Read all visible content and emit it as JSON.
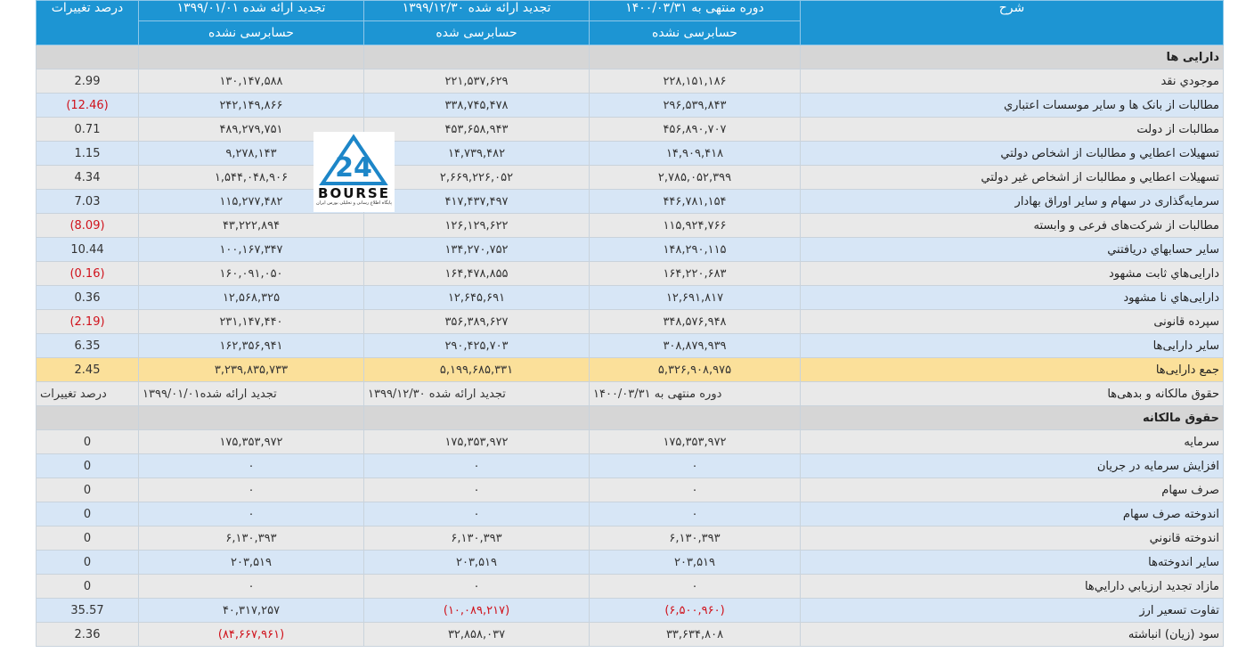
{
  "columns": {
    "label": "شرح",
    "c1": "دوره منتهی به ۱۴۰۰/۰۳/۳۱",
    "c2": "تجدید ارائه شده ۱۳۹۹/۱۲/۳۰",
    "c3": "تجدید ارائه شده ۱۳۹۹/۰۱/۰۱",
    "pct": "درصد تغییرات",
    "c1_sub": "حسابرسی نشده",
    "c2_sub": "حسابرسی شده",
    "c3_sub": "حسابرسی نشده"
  },
  "section_assets": "دارایی ها",
  "assets": [
    {
      "label": "موجودي نقد",
      "c1": "۲۲۸,۱۵۱,۱۸۶",
      "c2": "۲۲۱,۵۳۷,۶۲۹",
      "c3": "۱۳۰,۱۴۷,۵۸۸",
      "pct": "2.99"
    },
    {
      "label": "مطالبات از بانک ها و ساير موسسات اعتباري",
      "c1": "۲۹۶,۵۳۹,۸۴۳",
      "c2": "۳۳۸,۷۴۵,۴۷۸",
      "c3": "۲۴۲,۱۴۹,۸۶۶",
      "pct": "(12.46)"
    },
    {
      "label": "مطالبات از دولت",
      "c1": "۴۵۶,۸۹۰,۷۰۷",
      "c2": "۴۵۳,۶۵۸,۹۴۳",
      "c3": "۴۸۹,۲۷۹,۷۵۱",
      "pct": "0.71"
    },
    {
      "label": "تسهيلات اعطايي و مطالبات از اشخاص دولتي",
      "c1": "۱۴,۹۰۹,۴۱۸",
      "c2": "۱۴,۷۳۹,۴۸۲",
      "c3": "۹,۲۷۸,۱۴۳",
      "pct": "1.15"
    },
    {
      "label": "تسهيلات اعطايي و مطالبات از اشخاص غير دولتي",
      "c1": "۲,۷۸۵,۰۵۲,۳۹۹",
      "c2": "۲,۶۶۹,۲۲۶,۰۵۲",
      "c3": "۱,۵۴۴,۰۴۸,۹۰۶",
      "pct": "4.34"
    },
    {
      "label": "سرمايه‌گذاری در سهام و ساير اوراق بهادار",
      "c1": "۴۴۶,۷۸۱,۱۵۴",
      "c2": "۴۱۷,۴۳۷,۴۹۷",
      "c3": "۱۱۵,۲۷۷,۴۸۲",
      "pct": "7.03"
    },
    {
      "label": "مطالبات از شرکت‌های فرعی و وابسته",
      "c1": "۱۱۵,۹۲۴,۷۶۶",
      "c2": "۱۲۶,۱۲۹,۶۲۲",
      "c3": "۴۳,۲۲۲,۸۹۴",
      "pct": "(8.09)"
    },
    {
      "label": "ساير حسابهاي دريافتني",
      "c1": "۱۴۸,۲۹۰,۱۱۵",
      "c2": "۱۳۴,۲۷۰,۷۵۲",
      "c3": "۱۰۰,۱۶۷,۳۴۷",
      "pct": "10.44"
    },
    {
      "label": "دارايی‌هاي ثابت مشهود",
      "c1": "۱۶۴,۲۲۰,۶۸۳",
      "c2": "۱۶۴,۴۷۸,۸۵۵",
      "c3": "۱۶۰,۰۹۱,۰۵۰",
      "pct": "(0.16)"
    },
    {
      "label": "دارايی‌هاي نا مشهود",
      "c1": "۱۲,۶۹۱,۸۱۷",
      "c2": "۱۲,۶۴۵,۶۹۱",
      "c3": "۱۲,۵۶۸,۳۲۵",
      "pct": "0.36"
    },
    {
      "label": "سپرده قانونی",
      "c1": "۳۴۸,۵۷۶,۹۴۸",
      "c2": "۳۵۶,۳۸۹,۶۲۷",
      "c3": "۲۳۱,۱۴۷,۴۴۰",
      "pct": "(2.19)"
    },
    {
      "label": "ساير دارايی‌ها",
      "c1": "۳۰۸,۸۷۹,۹۳۹",
      "c2": "۲۹۰,۴۲۵,۷۰۳",
      "c3": "۱۶۲,۳۵۶,۹۴۱",
      "pct": "6.35"
    }
  ],
  "total_assets": {
    "label": "جمع دارايی‌ها",
    "c1": "۵,۳۲۶,۹۰۸,۹۷۵",
    "c2": "۵,۱۹۹,۶۸۵,۳۳۱",
    "c3": "۳,۲۳۹,۸۳۵,۷۳۳",
    "pct": "2.45"
  },
  "sub_header": {
    "label": "حقوق مالکانه و بدهی‌ها",
    "c1": "دوره منتهی به ۱۴۰۰/۰۳/۳۱",
    "c2": "تجدید ارائه شده ۱۳۹۹/۱۲/۳۰",
    "c3": "تجدید ارائه شده۱۳۹۹/۰۱/۰۱",
    "pct": "درصد تغییرات"
  },
  "section_equity": "حقوق مالکانه",
  "equity": [
    {
      "label": "سرمايه",
      "c1": "۱۷۵,۳۵۳,۹۷۲",
      "c2": "۱۷۵,۳۵۳,۹۷۲",
      "c3": "۱۷۵,۳۵۳,۹۷۲",
      "pct": "0"
    },
    {
      "label": "افزايش سرمايه در جريان",
      "c1": "۰",
      "c2": "۰",
      "c3": "۰",
      "pct": "0"
    },
    {
      "label": "صرف سهام",
      "c1": "۰",
      "c2": "۰",
      "c3": "۰",
      "pct": "0"
    },
    {
      "label": "اندوخته صرف سهام",
      "c1": "۰",
      "c2": "۰",
      "c3": "۰",
      "pct": "0"
    },
    {
      "label": "اندوخته قانوني",
      "c1": "۶,۱۳۰,۳۹۳",
      "c2": "۶,۱۳۰,۳۹۳",
      "c3": "۶,۱۳۰,۳۹۳",
      "pct": "0"
    },
    {
      "label": "ساير اندوخته‌ها",
      "c1": "۲۰۳,۵۱۹",
      "c2": "۲۰۳,۵۱۹",
      "c3": "۲۰۳,۵۱۹",
      "pct": "0"
    },
    {
      "label": "مازاد تجديد ارزيابي دارايي‌ها",
      "c1": "۰",
      "c2": "۰",
      "c3": "۰",
      "pct": "0"
    },
    {
      "label": "تفاوت تسعير ارز",
      "c1": "(۶,۵۰۰,۹۶۰)",
      "c2": "(۱۰,۰۸۹,۲۱۷)",
      "c3": "۴۰,۳۱۷,۲۵۷",
      "pct": "35.57"
    },
    {
      "label": "سود (زيان) انباشته",
      "c1": "۳۳,۶۳۴,۸۰۸",
      "c2": "۳۲,۸۵۸,۰۳۷",
      "c3": "(۸۴,۶۶۷,۹۶۱)",
      "pct": "2.36"
    }
  ],
  "logo": {
    "word": "BOURSE",
    "mark": "24",
    "tagline": "پایگاه اطلاع رسانی و تحلیلی بورس ایران",
    "color": "#1d86c8"
  }
}
